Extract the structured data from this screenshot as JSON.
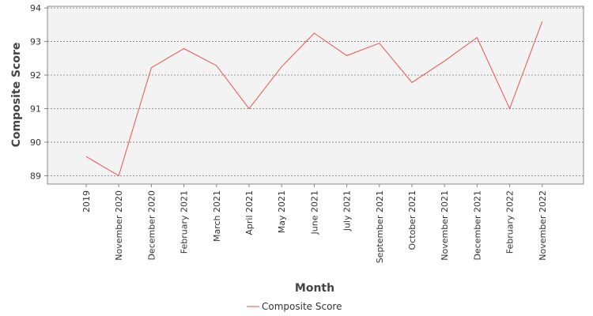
{
  "chart_data": {
    "type": "line",
    "title": "",
    "xlabel": "Month",
    "ylabel": "Composite Score",
    "categories": [
      "2019",
      "November 2020",
      "December 2020",
      "February 2021",
      "March 2021",
      "April 2021",
      "May 2021",
      "June 2021",
      "July 2021",
      "September 2021",
      "October 2021",
      "November 2021",
      "December 2021",
      "February 2022",
      "November 2022"
    ],
    "series": [
      {
        "name": "Composite Score",
        "color": "#f05050",
        "values": [
          89.57,
          89.0,
          92.22,
          92.79,
          92.28,
          91.0,
          92.25,
          93.25,
          92.58,
          92.95,
          91.78,
          92.42,
          93.12,
          91.0,
          93.6
        ]
      }
    ],
    "ylim": [
      88.75,
      94.05
    ],
    "yticks": [
      89,
      90,
      91,
      92,
      93,
      94
    ],
    "grid": true,
    "legend_position": "bottom-center"
  }
}
